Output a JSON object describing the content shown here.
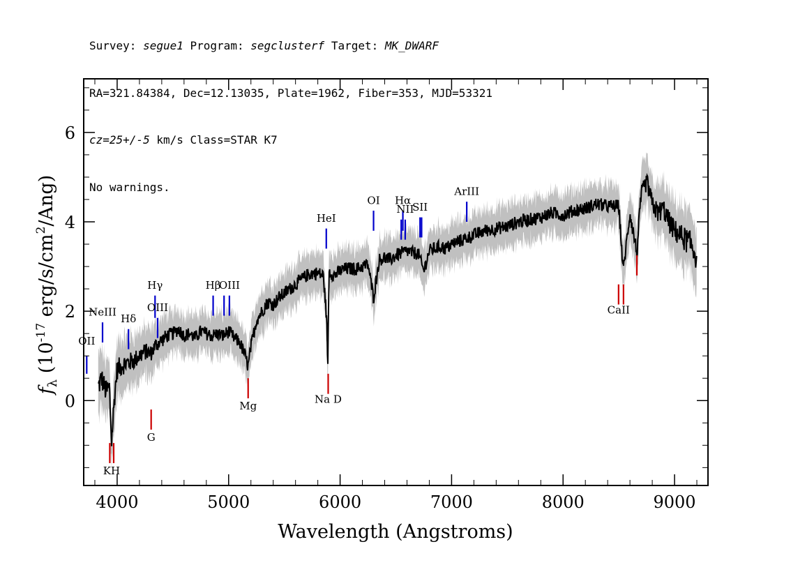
{
  "header": {
    "line1": {
      "survey_label": "Survey:",
      "survey": "segue1",
      "program_label": "Program:",
      "program": "segclusterf",
      "target_label": "Target:",
      "target": "MK_DWARF"
    },
    "line2": "RA=321.84384, Dec=12.13035, Plate=1962, Fiber=353, MJD=53321",
    "line3": {
      "cz": "cz=25+/-5",
      "rest": " km/s Class=STAR K7"
    },
    "line4": "No warnings."
  },
  "chart_data": {
    "type": "line",
    "xlabel": "Wavelength (Angstroms)",
    "ylabel_parts": {
      "f": "f",
      "sub": "λ",
      "open": " (10",
      "exp": "-17",
      "mid": " erg/s/cm",
      "exp2": "2",
      "close": "/Ang)"
    },
    "xlim": [
      3700,
      9300
    ],
    "ylim": [
      -1.9,
      7.2
    ],
    "xticks": [
      4000,
      5000,
      6000,
      7000,
      8000,
      9000
    ],
    "xtick_labels": [
      "4000",
      "5000",
      "6000",
      "7000",
      "8000",
      "9000"
    ],
    "yticks": [
      0,
      2,
      4,
      6
    ],
    "ytick_labels": [
      "0",
      "2",
      "4",
      "6"
    ],
    "colors": {
      "spectrum": "#000000",
      "error_band": "#c0c0c0",
      "emission_line": "#0000cc",
      "absorption_line": "#cc0000"
    },
    "series": [
      {
        "x": [
          3830,
          3860,
          3900,
          3930,
          3950,
          3980,
          4000,
          4050,
          4100,
          4150,
          4200,
          4250,
          4300,
          4350,
          4400,
          4450,
          4500,
          4550,
          4600,
          4650,
          4700,
          4750,
          4800,
          4850,
          4900,
          4950,
          5000,
          5050,
          5100,
          5150,
          5175,
          5200,
          5250,
          5300,
          5350,
          5400,
          5450,
          5500,
          5550,
          5600,
          5650,
          5700,
          5750,
          5800,
          5850,
          5880,
          5890,
          5900,
          5920,
          5950,
          6000,
          6050,
          6100,
          6150,
          6200,
          6250,
          6300,
          6350,
          6400,
          6450,
          6500,
          6550,
          6600,
          6650,
          6700,
          6750,
          6800,
          6850,
          6900,
          6950,
          7000,
          7050,
          7100,
          7150,
          7200,
          7300,
          7400,
          7500,
          7600,
          7700,
          7800,
          7900,
          8000,
          8100,
          8200,
          8300,
          8400,
          8500,
          8540,
          8600,
          8662,
          8700,
          8750,
          8800,
          8850,
          8900,
          8950,
          9000,
          9050,
          9100,
          9150,
          9200
        ],
        "y": [
          0.3,
          0.5,
          0.2,
          0.3,
          -0.9,
          0.2,
          0.7,
          0.8,
          0.85,
          0.9,
          1.0,
          1.1,
          1.05,
          1.25,
          1.35,
          1.45,
          1.5,
          1.6,
          1.45,
          1.5,
          1.4,
          1.55,
          1.5,
          1.45,
          1.5,
          1.45,
          1.55,
          1.4,
          1.3,
          1.0,
          0.75,
          1.2,
          1.8,
          2.0,
          2.2,
          2.15,
          2.3,
          2.4,
          2.5,
          2.6,
          2.7,
          2.8,
          2.85,
          2.85,
          2.8,
          1.8,
          0.7,
          2.9,
          2.85,
          2.8,
          2.9,
          2.95,
          2.95,
          2.95,
          3.0,
          3.05,
          2.3,
          3.15,
          3.2,
          3.15,
          3.25,
          3.3,
          3.35,
          3.3,
          3.3,
          2.9,
          3.35,
          3.4,
          3.45,
          3.4,
          3.5,
          3.55,
          3.6,
          3.65,
          3.7,
          3.8,
          3.85,
          3.9,
          4.0,
          4.05,
          4.1,
          4.2,
          4.15,
          4.25,
          4.3,
          4.4,
          4.35,
          4.35,
          2.9,
          4.2,
          3.3,
          4.6,
          4.9,
          4.4,
          4.2,
          4.3,
          4.0,
          3.8,
          3.7,
          3.6,
          3.5,
          3.2
        ]
      }
    ],
    "annotations": [
      {
        "label": "OII",
        "x": 3727,
        "y0": 0.6,
        "y1": 1.0,
        "color": "emission",
        "label_y": 1.25
      },
      {
        "label": "NeIII",
        "x": 3869,
        "y0": 1.3,
        "y1": 1.75,
        "color": "emission",
        "label_y": 1.9
      },
      {
        "label": "Hδ",
        "x": 4102,
        "y0": 1.15,
        "y1": 1.6,
        "color": "emission",
        "label_y": 1.75
      },
      {
        "label": "Hγ",
        "x": 4340,
        "y0": 1.85,
        "y1": 2.35,
        "color": "emission",
        "label_y": 2.5
      },
      {
        "label": "OIII",
        "x": 4363,
        "y0": 1.4,
        "y1": 1.85,
        "color": "emission",
        "label_y": 2.0
      },
      {
        "label": "Hβ",
        "x": 4861,
        "y0": 1.9,
        "y1": 2.35,
        "color": "emission",
        "label_y": 2.5
      },
      {
        "label": "OIII",
        "x": 4959,
        "y0": 1.9,
        "y1": 2.35,
        "color": "emission",
        "label_y": 0
      },
      {
        "label": "OIII",
        "x": 5007,
        "y0": 1.9,
        "y1": 2.35,
        "color": "emission",
        "label_y": 2.5
      },
      {
        "label": "HeI",
        "x": 5876,
        "y0": 3.4,
        "y1": 3.85,
        "color": "emission",
        "label_y": 4.0
      },
      {
        "label": "OI",
        "x": 6300,
        "y0": 3.8,
        "y1": 4.25,
        "color": "emission",
        "label_y": 4.4
      },
      {
        "label": "NII",
        "x": 6548,
        "y0": 3.6,
        "y1": 4.05,
        "color": "emission",
        "label_y": 4.2
      },
      {
        "label": "Hα",
        "x": 6563,
        "y0": 3.8,
        "y1": 4.25,
        "color": "emission",
        "label_y": 4.4
      },
      {
        "label": "NII",
        "x": 6584,
        "y0": 3.6,
        "y1": 4.05,
        "color": "emission",
        "label_y": 4.2
      },
      {
        "label": "SII",
        "x": 6717,
        "y0": 3.65,
        "y1": 4.1,
        "color": "emission",
        "label_y": 4.25
      },
      {
        "label": "SII",
        "x": 6731,
        "y0": 3.65,
        "y1": 4.1,
        "color": "emission",
        "label_y": 0
      },
      {
        "label": "ArIII",
        "x": 7136,
        "y0": 4.0,
        "y1": 4.45,
        "color": "emission",
        "label_y": 4.6
      },
      {
        "label": "K",
        "x": 3934,
        "y0": -1.4,
        "y1": -0.95,
        "color": "absorption",
        "label_y": -1.65
      },
      {
        "label": "H",
        "x": 3969,
        "y0": -1.4,
        "y1": -0.95,
        "color": "absorption",
        "label_y": -1.65
      },
      {
        "label": "G",
        "x": 4305,
        "y0": -0.65,
        "y1": -0.2,
        "color": "absorption",
        "label_y": -0.9
      },
      {
        "label": "Mg",
        "x": 5175,
        "y0": 0.05,
        "y1": 0.5,
        "color": "absorption",
        "label_y": -0.2
      },
      {
        "label": "Na D",
        "x": 5893,
        "y0": 0.15,
        "y1": 0.6,
        "color": "absorption",
        "label_y": -0.05
      },
      {
        "label": "CaII",
        "x": 8498,
        "y0": 2.15,
        "y1": 2.6,
        "color": "absorption",
        "label_y": 1.95
      },
      {
        "label": "CaII",
        "x": 8542,
        "y0": 2.15,
        "y1": 2.6,
        "color": "absorption",
        "label_y": 0
      },
      {
        "label": "CaII",
        "x": 8662,
        "y0": 2.8,
        "y1": 3.25,
        "color": "absorption",
        "label_y": 0
      }
    ]
  }
}
